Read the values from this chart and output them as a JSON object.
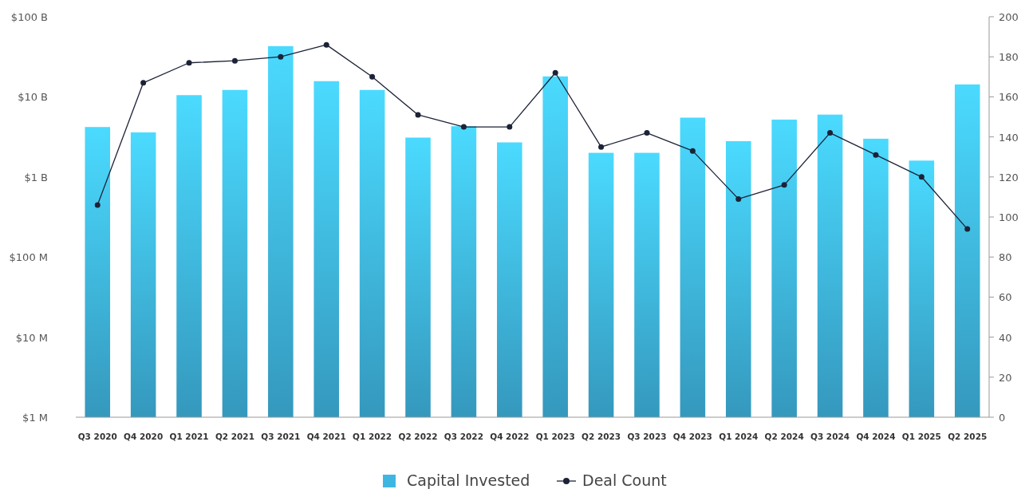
{
  "chart_data": {
    "type": "bar",
    "categories": [
      "Q3 2020",
      "Q4 2020",
      "Q1 2021",
      "Q2 2021",
      "Q3 2021",
      "Q4 2021",
      "Q1 2022",
      "Q2 2022",
      "Q3 2022",
      "Q4 2022",
      "Q1 2023",
      "Q2 2023",
      "Q3 2023",
      "Q4 2023",
      "Q1 2024",
      "Q2 2024",
      "Q3 2024",
      "Q4 2024",
      "Q1 2025",
      "Q2 2025"
    ],
    "series": [
      {
        "name": "Capital Invested",
        "color": "#3fb6e2",
        "values": [
          4200000000,
          3600000000,
          10500000000,
          12200000000,
          43000000000,
          15700000000,
          12200000000,
          3100000000,
          4300000000,
          2700000000,
          18000000000,
          2000000000,
          2000000000,
          5500000000,
          2800000000,
          5200000000,
          6000000000,
          3000000000,
          1600000000,
          14300000000
        ]
      },
      {
        "name": "Deal Count",
        "type": "line",
        "axis": "y2",
        "color": "#1c2237",
        "values": [
          106,
          167,
          177,
          178,
          180,
          186,
          170,
          151,
          145,
          145,
          172,
          135,
          142,
          133,
          109,
          116,
          142,
          131,
          120,
          94
        ]
      }
    ],
    "log": "y",
    "ylim": [
      1000000,
      100000000000
    ],
    "yticks": [
      {
        "value": 1000000,
        "label": "$1 M"
      },
      {
        "value": 10000000,
        "label": "$10 M"
      },
      {
        "value": 100000000,
        "label": "$100 M"
      },
      {
        "value": 1000000000,
        "label": "$1 B"
      },
      {
        "value": 10000000000,
        "label": "$10 B"
      },
      {
        "value": 100000000000,
        "label": "$100 B"
      }
    ],
    "y2lim": [
      0,
      200
    ],
    "y2ticks": [
      0,
      20,
      40,
      60,
      80,
      100,
      120,
      140,
      160,
      180,
      200
    ],
    "marker": "circle",
    "legend": "bottom",
    "grid": false
  }
}
